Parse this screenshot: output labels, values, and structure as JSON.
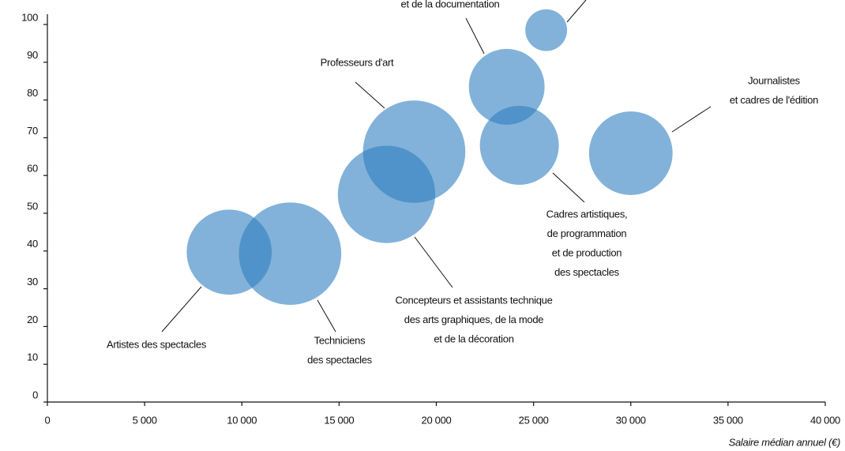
{
  "chart_data": {
    "type": "bubble",
    "xlabel": "Salaire médian annuel (€)",
    "color": "#2f7fbf",
    "x": [
      9350,
      12480,
      17440,
      18860,
      24270,
      23620,
      25650,
      30000
    ],
    "y": [
      39.7,
      39.3,
      55,
      66.3,
      68,
      83.5,
      98.5,
      65.9
    ],
    "sizes": [
      29,
      42,
      38,
      42,
      25,
      23,
      7,
      28
    ],
    "labels": [
      [
        "Artistes des spectacles"
      ],
      [
        "Techniciens",
        "des spectacles"
      ],
      [
        "Concepteurs et assistants technique",
        "des arts graphiques, de la mode",
        "et de la décoration"
      ],
      [
        "Professeurs d'art"
      ],
      [
        "Cadres artistiques,",
        "de programmation",
        "et de production",
        "des spectacles"
      ],
      [
        "et de la documentation"
      ],
      null,
      [
        "Journalistes",
        "et cadres de l'édition"
      ]
    ],
    "xlim": [
      0,
      40000
    ],
    "ylim": [
      0,
      100
    ],
    "xticks": [
      0,
      {
        "value": 5000,
        "label": "5 000"
      },
      {
        "value": 10000,
        "label": "10 000"
      },
      {
        "value": 15000,
        "label": "15 000"
      },
      {
        "value": 20000,
        "label": "20 000"
      },
      {
        "value": 25000,
        "label": "25 000"
      },
      {
        "value": 30000,
        "label": "30 000"
      },
      {
        "value": 35000,
        "label": "35 000"
      },
      {
        "value": 40000,
        "label": "40 000"
      }
    ],
    "yticks": [
      0,
      10,
      20,
      30,
      40,
      50,
      60,
      70,
      80,
      90,
      100
    ]
  }
}
